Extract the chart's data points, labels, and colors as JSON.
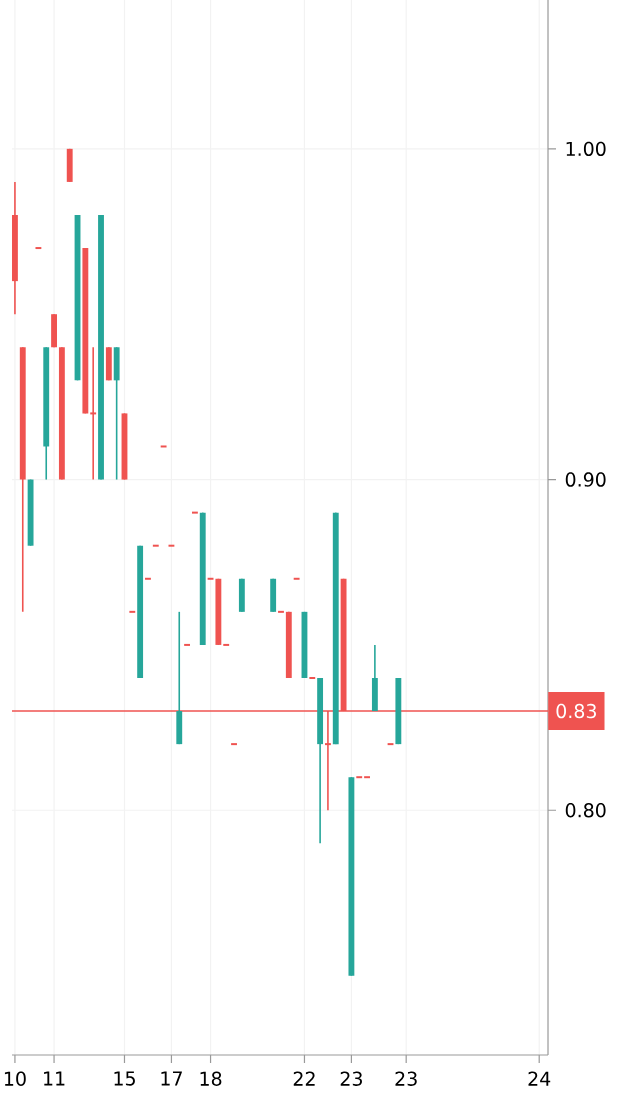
{
  "chart_data": {
    "type": "candlestick",
    "categories": [
      "10",
      null,
      null,
      null,
      null,
      "11",
      null,
      null,
      null,
      null,
      null,
      null,
      null,
      null,
      "15",
      null,
      null,
      null,
      null,
      null,
      "17",
      null,
      null,
      null,
      null,
      "18",
      null,
      null,
      null,
      null,
      null,
      null,
      null,
      null,
      null,
      null,
      null,
      "22",
      null,
      null,
      null,
      null,
      null,
      "23",
      null,
      null,
      null,
      null,
      null,
      null,
      "23",
      null,
      null,
      null,
      null,
      null,
      null,
      null,
      null,
      null,
      null,
      null,
      null,
      null,
      null,
      null,
      null,
      "24"
    ],
    "ohlc": [
      [
        0.98,
        0.99,
        0.95,
        0.96
      ],
      [
        0.94,
        0.94,
        0.86,
        0.9
      ],
      [
        0.88,
        0.9,
        0.88,
        0.9
      ],
      [
        0.97,
        0.97,
        0.97,
        0.97
      ],
      [
        0.91,
        0.94,
        0.9,
        0.94
      ],
      [
        0.95,
        0.95,
        0.94,
        0.94
      ],
      [
        0.94,
        0.94,
        0.9,
        0.9
      ],
      [
        1.0,
        1.0,
        0.99,
        0.99
      ],
      [
        0.93,
        0.98,
        0.93,
        0.98
      ],
      [
        0.97,
        0.97,
        0.92,
        0.92
      ],
      [
        0.92,
        0.94,
        0.9,
        0.92
      ],
      [
        0.9,
        0.98,
        0.9,
        0.98
      ],
      [
        0.94,
        0.94,
        0.93,
        0.93
      ],
      [
        0.93,
        0.94,
        0.9,
        0.94
      ],
      [
        0.92,
        0.92,
        0.9,
        0.9
      ],
      [
        0.86,
        0.86,
        0.86,
        0.86
      ],
      [
        0.84,
        0.88,
        0.84,
        0.88
      ],
      [
        0.87,
        0.87,
        0.87,
        0.87
      ],
      [
        0.88,
        0.88,
        0.88,
        0.88
      ],
      [
        0.91,
        0.91,
        0.91,
        0.91
      ],
      [
        0.88,
        0.88,
        0.88,
        0.88
      ],
      [
        0.82,
        0.86,
        0.82,
        0.83
      ],
      [
        0.85,
        0.85,
        0.85,
        0.85
      ],
      [
        0.89,
        0.89,
        0.89,
        0.89
      ],
      [
        0.85,
        0.89,
        0.85,
        0.89
      ],
      [
        0.87,
        0.87,
        0.87,
        0.87
      ],
      [
        0.87,
        0.87,
        0.85,
        0.85
      ],
      [
        0.85,
        0.85,
        0.85,
        0.85
      ],
      [
        0.82,
        0.82,
        0.82,
        0.82
      ],
      [
        0.86,
        0.87,
        0.86,
        0.87
      ],
      null,
      null,
      null,
      [
        0.86,
        0.87,
        0.86,
        0.87
      ],
      [
        0.86,
        0.86,
        0.86,
        0.86
      ],
      [
        0.86,
        0.86,
        0.84,
        0.84
      ],
      [
        0.87,
        0.87,
        0.87,
        0.87
      ],
      [
        0.84,
        0.86,
        0.84,
        0.86
      ],
      [
        0.84,
        0.84,
        0.84,
        0.84
      ],
      [
        0.82,
        0.84,
        0.79,
        0.84
      ],
      [
        0.82,
        0.83,
        0.8,
        0.82
      ],
      [
        0.82,
        0.89,
        0.82,
        0.89
      ],
      [
        0.87,
        0.87,
        0.83,
        0.83
      ],
      [
        0.75,
        0.81,
        0.75,
        0.81
      ],
      [
        0.81,
        0.81,
        0.81,
        0.81
      ],
      [
        0.81,
        0.81,
        0.81,
        0.81
      ],
      [
        0.83,
        0.85,
        0.83,
        0.84
      ],
      null,
      [
        0.82,
        0.82,
        0.82,
        0.82
      ],
      [
        0.82,
        0.84,
        0.82,
        0.84
      ],
      null,
      null,
      null,
      null,
      null,
      null,
      null,
      null,
      null,
      null,
      null,
      null,
      null,
      null,
      null,
      null,
      null,
      null
    ],
    "colors": [
      "#ef5350",
      "#ef5350",
      "#26a69a",
      "#ef5350",
      "#26a69a",
      "#ef5350",
      "#ef5350",
      "#ef5350",
      "#26a69a",
      "#ef5350",
      "#ef5350",
      "#26a69a",
      "#ef5350",
      "#26a69a",
      "#ef5350",
      "#ef5350",
      "#26a69a",
      "#ef5350",
      "#ef5350",
      "#ef5350",
      "#ef5350",
      "#26a69a",
      "#ef5350",
      "#ef5350",
      "#26a69a",
      "#ef5350",
      "#ef5350",
      "#ef5350",
      "#ef5350",
      "#26a69a",
      null,
      null,
      null,
      "#26a69a",
      "#ef5350",
      "#ef5350",
      "#ef5350",
      "#26a69a",
      "#ef5350",
      "#26a69a",
      "#ef5350",
      "#26a69a",
      "#ef5350",
      "#26a69a",
      "#ef5350",
      "#ef5350",
      "#26a69a",
      null,
      "#ef5350",
      "#26a69a",
      null,
      null,
      null,
      null,
      null,
      null,
      null,
      null,
      null,
      null,
      null,
      null,
      null,
      null,
      null,
      null,
      null,
      null
    ],
    "ylim": [
      0.726,
      1.045
    ],
    "yticks": [
      {
        "value": 0.8,
        "label": "0.80"
      },
      {
        "value": 0.9,
        "label": "0.90"
      },
      {
        "value": 1.0,
        "label": "1.00"
      }
    ],
    "grid": true,
    "ref_lines": [
      {
        "axis": "y",
        "value": 0.83,
        "label": "0.83",
        "color": "#ef5350"
      }
    ]
  }
}
